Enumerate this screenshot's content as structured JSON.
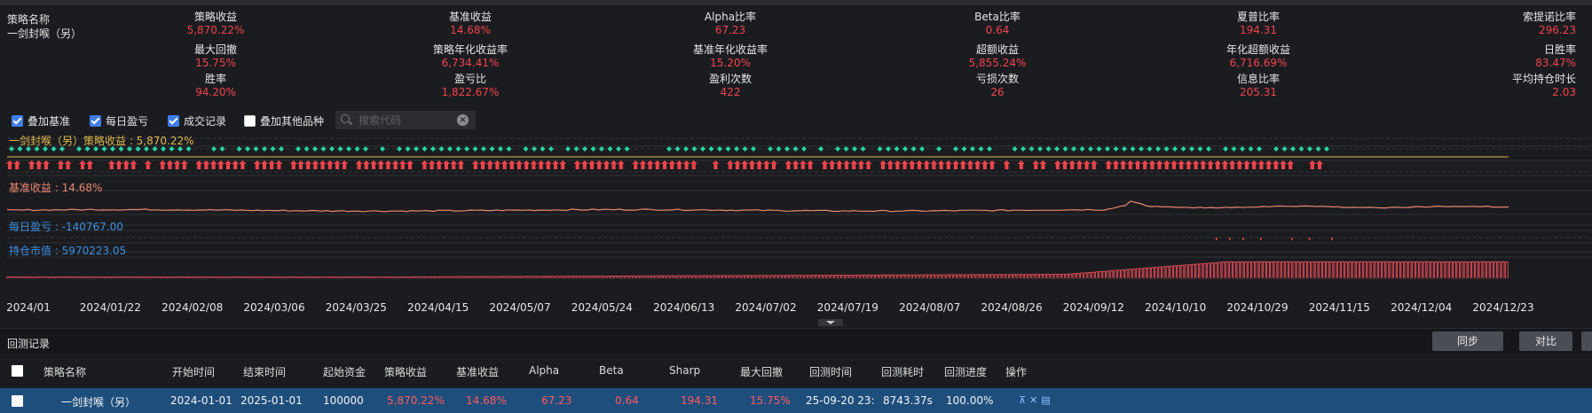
{
  "strategy": {
    "label": "策略名称",
    "name": "一剑封喉（另）"
  },
  "stats": [
    [
      {
        "label": "策略收益",
        "value": "5,870.22%"
      },
      {
        "label": "基准收益",
        "value": "14.68%"
      },
      {
        "label": "Alpha比率",
        "value": "67.23"
      },
      {
        "label": "Beta比率",
        "value": "0.64"
      },
      {
        "label": "夏普比率",
        "value": "194.31"
      },
      {
        "label": "索提诺比率",
        "value": "296.23"
      }
    ],
    [
      {
        "label": "最大回撤",
        "value": "15.75%"
      },
      {
        "label": "策略年化收益率",
        "value": "6,734.41%"
      },
      {
        "label": "基准年化收益率",
        "value": "15.20%"
      },
      {
        "label": "超额收益",
        "value": "5,855.24%"
      },
      {
        "label": "年化超额收益",
        "value": "6,716.69%"
      },
      {
        "label": "日胜率",
        "value": "83.47%"
      }
    ],
    [
      {
        "label": "胜率",
        "value": "94.20%"
      },
      {
        "label": "盈亏比",
        "value": "1,822.67%"
      },
      {
        "label": "盈利次数",
        "value": "422"
      },
      {
        "label": "亏损次数",
        "value": "26"
      },
      {
        "label": "信息比率",
        "value": "205.31"
      },
      {
        "label": "平均持仓时长",
        "value": "2.03"
      }
    ]
  ],
  "toolbar": {
    "overlay_benchmark": "叠加基准",
    "daily_pnl": "每日盈亏",
    "trades": "成交记录",
    "overlay_other": "叠加其他品种",
    "search_placeholder": "搜索代码"
  },
  "panels": {
    "strategy_return": "一剑封喉（另）策略收益 : 5,870.22%",
    "benchmark_return": "基准收益 : 14.68%",
    "daily_pnl": "每日盈亏 : -140767.00",
    "position_value": "持仓市值 : 5970223.05"
  },
  "colors": {
    "buy": "#f0444c",
    "sell": "#25d4a4",
    "benchmark": "#e9866f",
    "strategy": "#e0b84a",
    "blue": "#3c8fe0",
    "position": "#e24b55"
  },
  "x_ticks": [
    "2024/01",
    "2024/01/22",
    "2024/02/08",
    "2024/03/06",
    "2024/03/25",
    "2024/04/15",
    "2024/05/07",
    "2024/05/24",
    "2024/06/13",
    "2024/07/02",
    "2024/07/19",
    "2024/08/07",
    "2024/08/26",
    "2024/09/12",
    "2024/10/10",
    "2024/10/29",
    "2024/11/15",
    "2024/12/04",
    "2024/12/23"
  ],
  "records": {
    "title": "回测记录",
    "sync_button": "同步",
    "compare_button": "对比",
    "columns": [
      "策略名称",
      "开始时间",
      "结束时间",
      "起始资金",
      "策略收益",
      "基准收益",
      "Alpha",
      "Beta",
      "Sharp",
      "最大回撤",
      "回测时间",
      "回测耗时",
      "回测进度",
      "操作"
    ],
    "row": {
      "name": "一剑封喉（另）",
      "start": "2024-01-01",
      "end": "2025-01-01",
      "capital": "100000",
      "strategy_return": "5,870.22%",
      "benchmark_return": "14.68%",
      "alpha": "67.23",
      "beta": "0.64",
      "sharp": "194.31",
      "max_drawdown": "15.75%",
      "test_time": "25-09-20 23:",
      "elapsed": "8743.37s",
      "progress": "100.00%"
    },
    "ops_icons": [
      "pin-top-icon",
      "delete-icon",
      "detail-icon"
    ]
  }
}
